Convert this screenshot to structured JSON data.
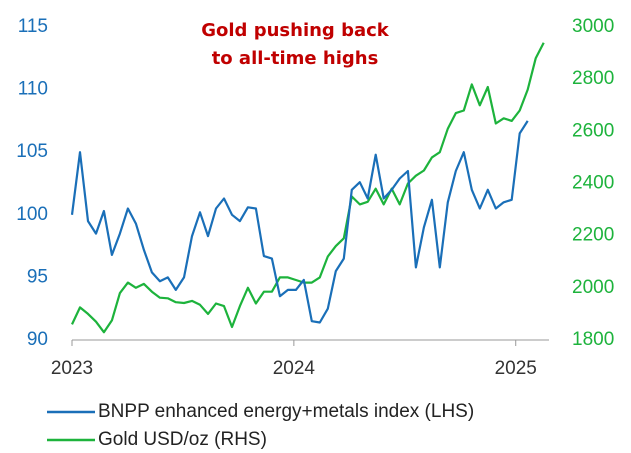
{
  "chart_data": {
    "type": "line",
    "title": [
      "Gold pushing back",
      "to all-time highs"
    ],
    "title_color": "#c00000",
    "x": [
      2023.0,
      2023.036,
      2023.072,
      2023.108,
      2023.144,
      2023.18,
      2023.216,
      2023.252,
      2023.288,
      2023.324,
      2023.36,
      2023.396,
      2023.432,
      2023.468,
      2023.505,
      2023.541,
      2023.577,
      2023.613,
      2023.649,
      2023.685,
      2023.721,
      2023.757,
      2023.793,
      2023.829,
      2023.865,
      2023.901,
      2023.937,
      2023.973,
      2024.009,
      2024.045,
      2024.081,
      2024.117,
      2024.153,
      2024.189,
      2024.225,
      2024.261,
      2024.297,
      2024.333,
      2024.369,
      2024.405,
      2024.441,
      2024.477,
      2024.514,
      2024.55,
      2024.586,
      2024.622,
      2024.658,
      2024.694,
      2024.73,
      2024.766,
      2024.802,
      2024.838,
      2024.874,
      2024.91,
      2024.946,
      2024.982,
      2025.018,
      2025.054,
      2025.09,
      2025.126
    ],
    "xlim": [
      2023,
      2025.15
    ],
    "xticks": [
      2023,
      2024,
      2025
    ],
    "ylim": [
      90,
      115
    ],
    "yticks": [
      90,
      95,
      100,
      105,
      110,
      115
    ],
    "y2lim": [
      1800,
      3000
    ],
    "y2ticks": [
      1800,
      2000,
      2200,
      2400,
      2600,
      2800,
      3000
    ],
    "series": [
      {
        "name": "BNPP enhanced energy+metals index (LHS)",
        "color": "#1a6fb8",
        "axis": "y",
        "values": [
          100,
          105,
          99.5,
          98.5,
          100.3,
          96.8,
          98.5,
          100.5,
          99.3,
          97.2,
          95.4,
          94.7,
          95,
          94,
          95,
          98.3,
          100.2,
          98.3,
          100.5,
          101.3,
          100,
          99.5,
          100.6,
          100.5,
          96.7,
          96.5,
          93.5,
          94,
          94,
          94.8,
          91.5,
          91.4,
          92.5,
          95.5,
          96.5,
          102,
          102.6,
          101.3,
          104.8,
          101.3,
          102,
          102.9,
          103.5,
          95.8,
          99,
          101.2,
          95.8,
          101,
          103.5,
          105,
          102,
          100.5,
          102,
          100.5,
          101,
          101.2,
          106.5,
          107.5,
          null,
          null
        ]
      },
      {
        "name": "Gold USD/oz (RHS)",
        "color": "#1db33c",
        "axis": "y2",
        "values": [
          1860,
          1925,
          1900,
          1870,
          1830,
          1875,
          1980,
          2020,
          2000,
          2015,
          1985,
          1962,
          1960,
          1945,
          1942,
          1950,
          1935,
          1900,
          1940,
          1930,
          1850,
          1930,
          2000,
          1940,
          1985,
          1985,
          2040,
          2040,
          2030,
          2020,
          2020,
          2040,
          2120,
          2160,
          2190,
          2350,
          2320,
          2330,
          2380,
          2320,
          2380,
          2320,
          2400,
          2430,
          2450,
          2500,
          2520,
          2610,
          2670,
          2680,
          2780,
          2700,
          2770,
          2630,
          2650,
          2640,
          2680,
          2760,
          2880,
          2940
        ]
      }
    ]
  }
}
